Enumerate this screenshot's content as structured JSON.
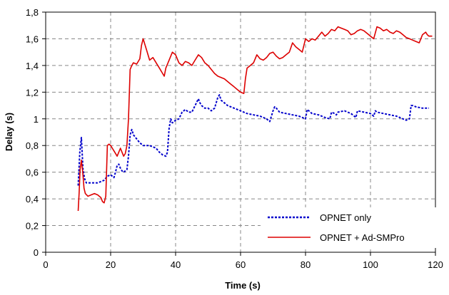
{
  "chart_data": {
    "type": "line",
    "xlabel": "Time (s)",
    "ylabel": "Delay (s)",
    "xlim": [
      0,
      120
    ],
    "ylim": [
      0,
      1.8
    ],
    "x_ticks": [
      "0",
      "20",
      "40",
      "60",
      "80",
      "100",
      "120"
    ],
    "y_ticks": [
      "0",
      "0,2",
      "0,4",
      "0,6",
      "0,8",
      "1",
      "1,2",
      "1,4",
      "1,6",
      "1,8"
    ],
    "grid": "dashed",
    "legend_position": "bottom-right",
    "colors": {
      "opnet_only": "#0000cc",
      "opnet_adsmpro": "#dd0000"
    },
    "series": [
      {
        "name": "OPNET only",
        "style": "dotted",
        "color": "#0000cc",
        "x": [
          10,
          10.5,
          11,
          11.5,
          12,
          12.5,
          13,
          14,
          15,
          16,
          17,
          18,
          19,
          20,
          21,
          21.5,
          22,
          22.5,
          23,
          23.5,
          24,
          25,
          25.5,
          26,
          26.5,
          27,
          28,
          29,
          30,
          32,
          34,
          35,
          36,
          37,
          37.5,
          38,
          38.5,
          39,
          40,
          41,
          42,
          43,
          44,
          45,
          46,
          47,
          47.5,
          48,
          49,
          50,
          51,
          52,
          53,
          53.5,
          54,
          55,
          56,
          58,
          60,
          62,
          64,
          66,
          68,
          69,
          70,
          70.5,
          71,
          72,
          74,
          76,
          78,
          80,
          80.5,
          81,
          82,
          84,
          86,
          87.5,
          88,
          89,
          89.5,
          90,
          92,
          94,
          95,
          95.5,
          96,
          98,
          100,
          101,
          101.5,
          102,
          104,
          106,
          108,
          110,
          111,
          112,
          112.5,
          113,
          114,
          116,
          118
        ],
        "y": [
          0.5,
          0.75,
          0.86,
          0.62,
          0.55,
          0.52,
          0.52,
          0.52,
          0.52,
          0.52,
          0.53,
          0.54,
          0.57,
          0.58,
          0.56,
          0.6,
          0.65,
          0.66,
          0.63,
          0.61,
          0.6,
          0.62,
          0.72,
          0.88,
          0.92,
          0.88,
          0.85,
          0.82,
          0.8,
          0.8,
          0.78,
          0.75,
          0.73,
          0.72,
          0.75,
          0.93,
          1.0,
          0.97,
          0.99,
          1.0,
          1.05,
          1.07,
          1.05,
          1.05,
          1.1,
          1.15,
          1.12,
          1.1,
          1.08,
          1.08,
          1.06,
          1.08,
          1.16,
          1.18,
          1.14,
          1.12,
          1.1,
          1.08,
          1.06,
          1.04,
          1.03,
          1.02,
          1.0,
          0.98,
          1.06,
          1.09,
          1.08,
          1.05,
          1.04,
          1.03,
          1.02,
          1.0,
          1.07,
          1.06,
          1.04,
          1.03,
          1.01,
          1.0,
          1.05,
          1.04,
          1.03,
          1.05,
          1.06,
          1.04,
          1.02,
          1.01,
          1.06,
          1.05,
          1.04,
          1.02,
          1.06,
          1.05,
          1.04,
          1.03,
          1.02,
          1.0,
          0.99,
          1.0,
          1.1,
          1.1,
          1.09,
          1.08,
          1.08
        ]
      },
      {
        "name": "OPNET + Ad-SMPro",
        "style": "solid",
        "color": "#dd0000",
        "x": [
          10,
          10.3,
          10.6,
          11,
          11.4,
          11.8,
          12.2,
          13,
          14,
          15,
          16,
          17,
          17.5,
          18,
          18.5,
          19,
          19.5,
          20,
          20.5,
          21,
          22,
          23,
          23.5,
          24,
          24.5,
          25,
          25.5,
          26,
          26.5,
          27,
          28,
          29,
          29.5,
          30,
          31,
          32,
          33,
          34,
          35,
          36,
          36.5,
          37,
          38,
          39,
          40,
          41,
          42,
          43,
          44,
          45,
          46,
          47,
          48,
          49,
          50,
          51,
          52,
          53,
          54,
          55,
          56,
          57,
          58,
          59,
          60,
          61,
          61.5,
          62,
          63,
          64,
          65,
          66,
          67,
          68,
          69,
          70,
          71,
          72,
          73,
          74,
          75,
          76,
          77,
          78,
          79,
          80,
          81,
          82,
          83,
          84,
          85,
          86,
          87,
          88,
          89,
          90,
          91,
          92,
          93,
          94,
          95,
          96,
          97,
          98,
          99,
          100,
          101,
          102,
          103,
          104,
          105,
          106,
          107,
          108,
          109,
          110,
          111,
          112,
          113,
          114,
          115,
          116,
          117,
          117.5,
          118,
          119
        ],
        "y": [
          0.31,
          0.45,
          0.62,
          0.69,
          0.6,
          0.48,
          0.44,
          0.42,
          0.43,
          0.44,
          0.43,
          0.41,
          0.38,
          0.37,
          0.42,
          0.8,
          0.81,
          0.8,
          0.78,
          0.76,
          0.72,
          0.78,
          0.75,
          0.72,
          0.74,
          0.8,
          1.0,
          1.37,
          1.4,
          1.42,
          1.41,
          1.45,
          1.55,
          1.6,
          1.52,
          1.44,
          1.46,
          1.42,
          1.38,
          1.34,
          1.32,
          1.38,
          1.44,
          1.5,
          1.48,
          1.42,
          1.4,
          1.43,
          1.42,
          1.4,
          1.44,
          1.48,
          1.46,
          1.42,
          1.4,
          1.37,
          1.34,
          1.32,
          1.31,
          1.3,
          1.28,
          1.26,
          1.24,
          1.22,
          1.2,
          1.19,
          1.3,
          1.38,
          1.4,
          1.42,
          1.48,
          1.45,
          1.44,
          1.46,
          1.49,
          1.5,
          1.47,
          1.45,
          1.46,
          1.48,
          1.5,
          1.57,
          1.54,
          1.52,
          1.5,
          1.6,
          1.58,
          1.6,
          1.59,
          1.62,
          1.65,
          1.62,
          1.64,
          1.67,
          1.66,
          1.69,
          1.68,
          1.67,
          1.66,
          1.63,
          1.64,
          1.66,
          1.67,
          1.66,
          1.64,
          1.62,
          1.6,
          1.69,
          1.68,
          1.66,
          1.67,
          1.65,
          1.64,
          1.66,
          1.65,
          1.63,
          1.61,
          1.6,
          1.59,
          1.58,
          1.57,
          1.63,
          1.65,
          1.63,
          1.62,
          1.62
        ]
      }
    ]
  }
}
